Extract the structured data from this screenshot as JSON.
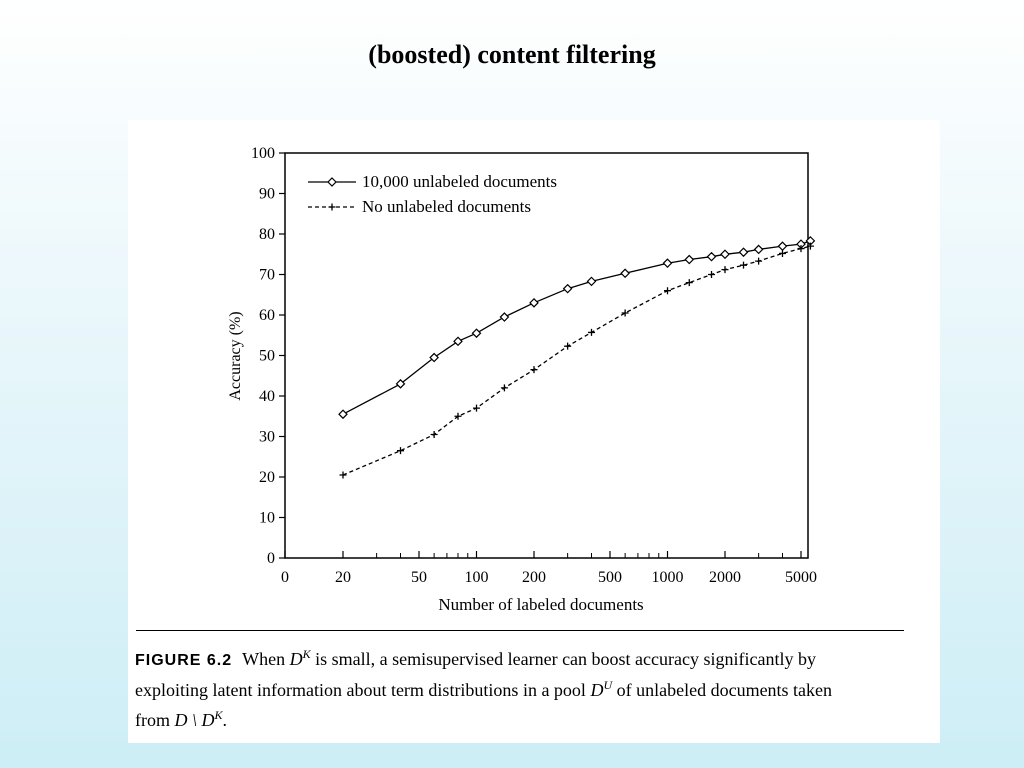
{
  "slide": {
    "title": "(boosted) content filtering"
  },
  "chart_data": {
    "type": "line",
    "ylabel": "Accuracy (%)",
    "xlabel": "Number of labeled documents",
    "ylim": [
      0,
      100
    ],
    "y_ticks": [
      0,
      10,
      20,
      30,
      40,
      50,
      60,
      70,
      80,
      90,
      100
    ],
    "x_scale": "log (with 0 at origin)",
    "x_tick_labels": [
      "0",
      "20",
      "50",
      "100",
      "200",
      "500",
      "1000",
      "2000",
      "5000"
    ],
    "x_tick_values": [
      0,
      20,
      50,
      100,
      200,
      500,
      1000,
      2000,
      5000
    ],
    "x_minor_ticks": [
      30,
      40,
      60,
      70,
      80,
      90,
      300,
      400,
      600,
      700,
      800,
      900,
      3000,
      4000
    ],
    "grid": false,
    "legend_position": "top-left",
    "series": [
      {
        "name": "10,000 unlabeled documents",
        "style": "solid, diamond markers",
        "points": [
          [
            20,
            35.5
          ],
          [
            40,
            43
          ],
          [
            60,
            49.5
          ],
          [
            80,
            53.5
          ],
          [
            100,
            55.5
          ],
          [
            140,
            59.5
          ],
          [
            200,
            63
          ],
          [
            300,
            66.5
          ],
          [
            400,
            68.3
          ],
          [
            600,
            70.3
          ],
          [
            1000,
            72.8
          ],
          [
            1300,
            73.7
          ],
          [
            1700,
            74.4
          ],
          [
            2000,
            75
          ],
          [
            2500,
            75.5
          ],
          [
            3000,
            76.2
          ],
          [
            4000,
            77
          ],
          [
            5000,
            77.5
          ],
          [
            5600,
            78.3
          ]
        ]
      },
      {
        "name": "No unlabeled documents",
        "style": "dashed, plus markers",
        "points": [
          [
            20,
            20.5
          ],
          [
            40,
            26.5
          ],
          [
            60,
            30.5
          ],
          [
            80,
            35
          ],
          [
            100,
            37
          ],
          [
            140,
            42
          ],
          [
            200,
            46.5
          ],
          [
            300,
            52.3
          ],
          [
            400,
            55.7
          ],
          [
            600,
            60.5
          ],
          [
            1000,
            66
          ],
          [
            1300,
            68
          ],
          [
            1700,
            70
          ],
          [
            2000,
            71.2
          ],
          [
            2500,
            72.3
          ],
          [
            3000,
            73.3
          ],
          [
            4000,
            75.2
          ],
          [
            5000,
            76.4
          ],
          [
            5600,
            77
          ]
        ]
      }
    ]
  },
  "caption": {
    "label": "FIGURE 6.2",
    "line1_a": "When ",
    "line1_dk": "D",
    "line1_dk_sup": "K",
    "line1_b": " is small, a semisupervised learner can boost accuracy significantly by",
    "line2_a": "exploiting latent information about term distributions in a pool ",
    "line2_du": "D",
    "line2_du_sup": "U",
    "line2_b": " of unlabeled documents taken",
    "line3_a": "from ",
    "line3_expr": "D \\ D",
    "line3_sup": "K",
    "line3_b": "."
  }
}
